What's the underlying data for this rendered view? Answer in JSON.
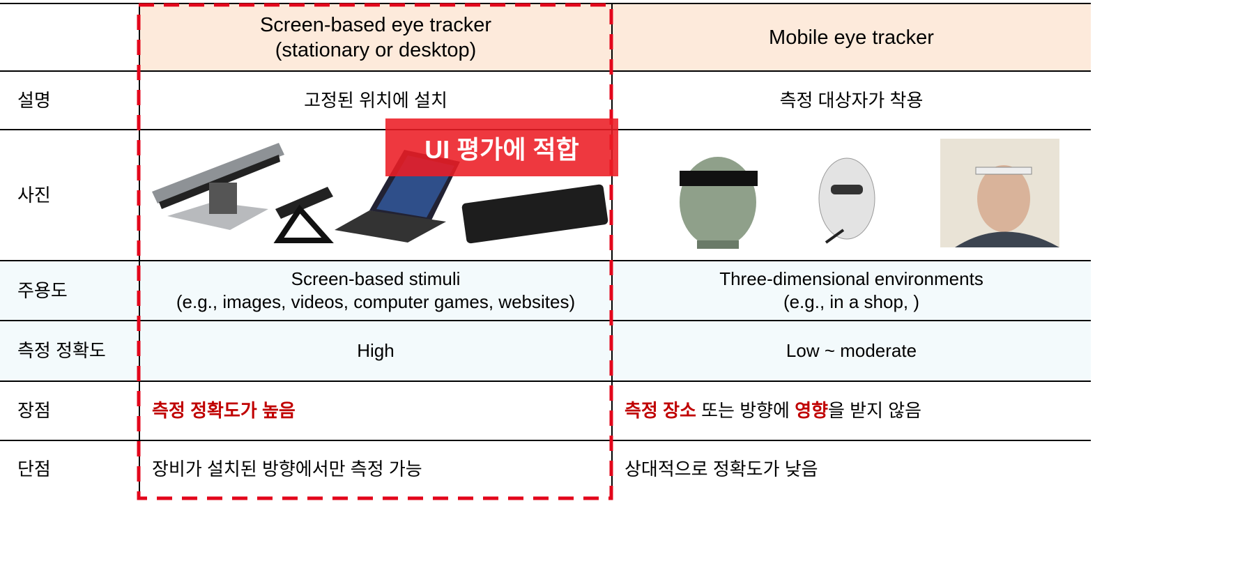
{
  "header": {
    "cells": [
      [
        [
          {
            "text": "Screen-based eye tracker"
          }
        ],
        [
          {
            "text": "(stationary or desktop)"
          }
        ]
      ],
      [
        [
          {
            "text": "Mobile eye tracker"
          }
        ]
      ]
    ]
  },
  "rows": [
    {
      "label": "설명",
      "cells": [
        [
          [
            {
              "text": "고정된 위치에 설치"
            }
          ]
        ],
        [
          [
            {
              "text": "측정 대상자가 착용"
            }
          ]
        ]
      ]
    },
    {
      "label": "사진"
    },
    {
      "label": "주용도",
      "cells": [
        [
          [
            {
              "text": "Screen-based stimuli"
            }
          ],
          [
            {
              "text": "(e.g., images, videos, computer games, websites)"
            }
          ]
        ],
        [
          [
            {
              "text": "Three-dimensional environments"
            }
          ],
          [
            {
              "text": "(e.g., in a shop, )"
            }
          ]
        ]
      ]
    },
    {
      "label": "측정 정확도",
      "cells": [
        [
          [
            {
              "text": "High"
            }
          ]
        ],
        [
          [
            {
              "text": "Low ~ moderate"
            }
          ]
        ]
      ]
    },
    {
      "label": "장점",
      "cells": [
        [
          [
            {
              "text": "측정 정확도가 높음",
              "emphasis": true
            }
          ]
        ],
        [
          [
            {
              "text": "측정 장소",
              "emphasis": true
            },
            {
              "text": " 또는 방향에 "
            },
            {
              "text": "영향",
              "emphasis": true
            },
            {
              "text": "을 받지 않음"
            }
          ]
        ]
      ]
    },
    {
      "label": "단점",
      "cells": [
        [
          [
            {
              "text": "장비가 설치된 방향에서만 측정 가능"
            }
          ]
        ],
        [
          [
            {
              "text": "상대적으로 정확도가 낮음"
            }
          ]
        ]
      ]
    }
  ],
  "badge": "UI 평가에 적합"
}
